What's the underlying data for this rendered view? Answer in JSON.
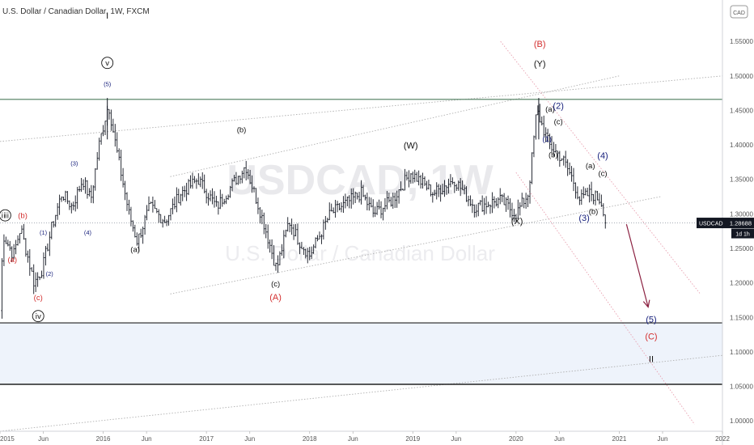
{
  "header": {
    "title": "U.S. Dollar / Canadian Dollar, 1W, FXCM",
    "currency_badge": "CAD"
  },
  "watermark": {
    "symbol": "USDCAD, 1W",
    "description": "U.S. Dollar / Canadian Dollar"
  },
  "price_tag": {
    "symbol": "USDCAD",
    "price": "1.28688",
    "countdown": "1d 1h"
  },
  "colors": {
    "candle": "#131722",
    "red_label": "#d32f2f",
    "blue_label": "#1a237e",
    "resistance": "#4c7c5c",
    "support": "#222222",
    "zone": "#eef3fb",
    "arrow": "#8b2040",
    "channel": "#b0b0b0",
    "red_dotted": "#e8a0b0"
  },
  "chart_data": {
    "type": "candlestick",
    "symbol": "USDCAD",
    "timeframe": "1W",
    "source": "FXCM",
    "ylim": [
      0.985,
      1.61
    ],
    "xlim": [
      2015.0,
      2022.0
    ],
    "y_ticks": [
      "1.55000",
      "1.50000",
      "1.45000",
      "1.40000",
      "1.35000",
      "1.30000",
      "1.25000",
      "1.20000",
      "1.15000",
      "1.10000",
      "1.05000",
      "1.00000"
    ],
    "x_ticks": [
      {
        "label": "2015",
        "x": 2015.0
      },
      {
        "label": "Jun",
        "x": 2015.42
      },
      {
        "label": "2016",
        "x": 2016.0
      },
      {
        "label": "Jun",
        "x": 2016.42
      },
      {
        "label": "2017",
        "x": 2017.0
      },
      {
        "label": "Jun",
        "x": 2017.42
      },
      {
        "label": "2018",
        "x": 2018.0
      },
      {
        "label": "Jun",
        "x": 2018.42
      },
      {
        "label": "2019",
        "x": 2019.0
      },
      {
        "label": "Jun",
        "x": 2019.42
      },
      {
        "label": "2020",
        "x": 2020.0
      },
      {
        "label": "Jun",
        "x": 2020.42
      },
      {
        "label": "2021",
        "x": 2021.0
      },
      {
        "label": "Jun",
        "x": 2021.42
      },
      {
        "label": "2022",
        "x": 2022.0
      }
    ],
    "last_price": 1.28688,
    "price_path": [
      [
        2015.0,
        1.16
      ],
      [
        2015.03,
        1.27
      ],
      [
        2015.13,
        1.24
      ],
      [
        2015.2,
        1.28
      ],
      [
        2015.33,
        1.2
      ],
      [
        2015.41,
        1.22
      ],
      [
        2015.5,
        1.28
      ],
      [
        2015.6,
        1.33
      ],
      [
        2015.7,
        1.31
      ],
      [
        2015.8,
        1.35
      ],
      [
        2015.88,
        1.32
      ],
      [
        2015.96,
        1.4
      ],
      [
        2016.05,
        1.46
      ],
      [
        2016.12,
        1.4
      ],
      [
        2016.25,
        1.3
      ],
      [
        2016.33,
        1.26
      ],
      [
        2016.45,
        1.31
      ],
      [
        2016.6,
        1.29
      ],
      [
        2016.75,
        1.33
      ],
      [
        2016.92,
        1.35
      ],
      [
        2017.1,
        1.31
      ],
      [
        2017.38,
        1.37
      ],
      [
        2017.55,
        1.29
      ],
      [
        2017.68,
        1.22
      ],
      [
        2017.8,
        1.29
      ],
      [
        2017.9,
        1.26
      ],
      [
        2018.0,
        1.24
      ],
      [
        2018.2,
        1.3
      ],
      [
        2018.5,
        1.33
      ],
      [
        2018.62,
        1.3
      ],
      [
        2018.8,
        1.32
      ],
      [
        2018.98,
        1.36
      ],
      [
        2019.2,
        1.33
      ],
      [
        2019.4,
        1.35
      ],
      [
        2019.6,
        1.31
      ],
      [
        2019.85,
        1.32
      ],
      [
        2020.0,
        1.3
      ],
      [
        2020.12,
        1.33
      ],
      [
        2020.2,
        1.45
      ],
      [
        2020.32,
        1.4
      ],
      [
        2020.45,
        1.38
      ],
      [
        2020.55,
        1.35
      ],
      [
        2020.62,
        1.32
      ],
      [
        2020.72,
        1.33
      ],
      [
        2020.82,
        1.32
      ],
      [
        2020.88,
        1.29
      ]
    ],
    "levels": [
      {
        "name": "resistance",
        "price": 1.466
      },
      {
        "name": "support-upper",
        "price": 1.142
      },
      {
        "name": "support-lower",
        "price": 1.053
      }
    ],
    "zone": [
      1.053,
      1.142
    ],
    "projection": [
      [
        2021.07,
        1.285
      ],
      [
        2021.28,
        1.165
      ]
    ],
    "trendlines": [
      {
        "points": [
          [
            2015.0,
            1.405
          ],
          [
            2022.0,
            1.5
          ]
        ],
        "style": "dotted",
        "color": "#b0b0b0"
      },
      {
        "points": [
          [
            2016.65,
            1.354
          ],
          [
            2021.0,
            1.5
          ]
        ],
        "style": "dotted",
        "color": "#b0b0b0"
      },
      {
        "points": [
          [
            2016.65,
            1.184
          ],
          [
            2021.4,
            1.325
          ]
        ],
        "style": "dotted",
        "color": "#b0b0b0"
      },
      {
        "points": [
          [
            2015.0,
            0.985
          ],
          [
            2022.0,
            1.095
          ]
        ],
        "style": "dotted",
        "color": "#b0b0b0"
      },
      {
        "points": [
          [
            2019.85,
            1.55
          ],
          [
            2021.78,
            1.185
          ]
        ],
        "style": "dotted",
        "color": "#e8a0b0"
      },
      {
        "points": [
          [
            2020.0,
            1.36
          ],
          [
            2021.73,
            0.995
          ]
        ],
        "style": "dotted",
        "color": "#e8a0b0"
      }
    ],
    "wave_labels": [
      {
        "text": "ⅰⅱⅰ",
        "x": 2015.05,
        "y": 1.294,
        "color": "black",
        "circled": true
      },
      {
        "text": "(a)",
        "x": 2015.12,
        "y": 1.23,
        "color": "red"
      },
      {
        "text": "(b)",
        "x": 2015.22,
        "y": 1.294,
        "color": "red"
      },
      {
        "text": "(c)",
        "x": 2015.37,
        "y": 1.175,
        "color": "red"
      },
      {
        "text": "ⅰv",
        "x": 2015.37,
        "y": 1.148,
        "color": "black",
        "circled": true
      },
      {
        "text": "(1)",
        "x": 2015.42,
        "y": 1.27,
        "color": "blue",
        "small": true
      },
      {
        "text": "(2)",
        "x": 2015.48,
        "y": 1.21,
        "color": "blue",
        "small": true
      },
      {
        "text": "(3)",
        "x": 2015.72,
        "y": 1.37,
        "color": "blue",
        "small": true
      },
      {
        "text": "(4)",
        "x": 2015.85,
        "y": 1.27,
        "color": "blue",
        "small": true
      },
      {
        "text": "(5)",
        "x": 2016.04,
        "y": 1.485,
        "color": "blue",
        "small": true
      },
      {
        "text": "v",
        "x": 2016.04,
        "y": 1.515,
        "color": "black",
        "circled": true
      },
      {
        "text": "(a)",
        "x": 2016.31,
        "y": 1.245,
        "color": "black"
      },
      {
        "text": "(b)",
        "x": 2017.34,
        "y": 1.418,
        "color": "black"
      },
      {
        "text": "(c)",
        "x": 2017.67,
        "y": 1.195,
        "color": "black"
      },
      {
        "text": "(A)",
        "x": 2017.67,
        "y": 1.175,
        "color": "red",
        "large": true
      },
      {
        "text": "(W)",
        "x": 2018.98,
        "y": 1.395,
        "color": "black",
        "large": true
      },
      {
        "text": "(X)",
        "x": 2020.01,
        "y": 1.285,
        "color": "black",
        "large": true
      },
      {
        "text": "(B)",
        "x": 2020.23,
        "y": 1.542,
        "color": "red",
        "large": true
      },
      {
        "text": "(Y)",
        "x": 2020.23,
        "y": 1.513,
        "color": "black",
        "large": true
      },
      {
        "text": "(1)",
        "x": 2020.3,
        "y": 1.405,
        "color": "blue"
      },
      {
        "text": "(a)",
        "x": 2020.33,
        "y": 1.448,
        "color": "black"
      },
      {
        "text": "(2)",
        "x": 2020.41,
        "y": 1.452,
        "color": "blue",
        "large": true
      },
      {
        "text": "(c)",
        "x": 2020.41,
        "y": 1.43,
        "color": "black"
      },
      {
        "text": "(b)",
        "x": 2020.36,
        "y": 1.382,
        "color": "black"
      },
      {
        "text": "(a)",
        "x": 2020.72,
        "y": 1.366,
        "color": "black"
      },
      {
        "text": "(4)",
        "x": 2020.84,
        "y": 1.38,
        "color": "blue",
        "large": true
      },
      {
        "text": "(c)",
        "x": 2020.84,
        "y": 1.355,
        "color": "black"
      },
      {
        "text": "(b)",
        "x": 2020.75,
        "y": 1.3,
        "color": "black"
      },
      {
        "text": "(3)",
        "x": 2020.66,
        "y": 1.29,
        "color": "blue",
        "large": true
      },
      {
        "text": "(5)",
        "x": 2021.31,
        "y": 1.143,
        "color": "blue",
        "large": true
      },
      {
        "text": "(C)",
        "x": 2021.31,
        "y": 1.118,
        "color": "red",
        "large": true
      },
      {
        "text": "I",
        "x": 2016.04,
        "y": 1.583,
        "color": "black",
        "large": true
      },
      {
        "text": "II",
        "x": 2021.31,
        "y": 1.085,
        "color": "black",
        "large": true
      }
    ]
  }
}
